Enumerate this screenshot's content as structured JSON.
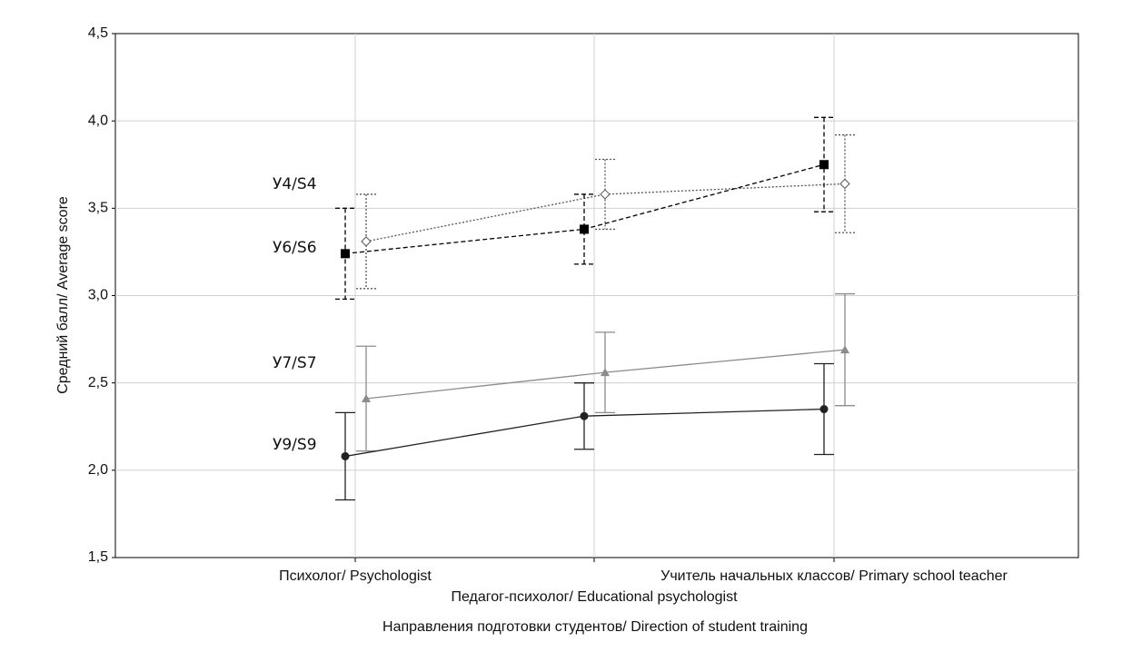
{
  "chart_data": {
    "type": "line",
    "x_label": "Направления подготовки студентов/ Direction of student training",
    "y_label": "Средний балл/ Average score",
    "categories": [
      "Психолог/ Psychologist",
      "Педагог-психолог/ Educational psychologist",
      "Учитель начальных классов/ Primary school teacher"
    ],
    "ylim": [
      1.5,
      4.5
    ],
    "yticks": [
      {
        "value": 1.5,
        "label": "1,5"
      },
      {
        "value": 2.0,
        "label": "2,0"
      },
      {
        "value": 2.5,
        "label": "2,5"
      },
      {
        "value": 3.0,
        "label": "3,0"
      },
      {
        "value": 3.5,
        "label": "3,5"
      },
      {
        "value": 4.0,
        "label": "4,0"
      },
      {
        "value": 4.5,
        "label": "4,5"
      }
    ],
    "grid": true,
    "series": [
      {
        "name": "У4/S4",
        "color": "#555555",
        "marker": "diamond",
        "dash": "dotted",
        "values": [
          3.31,
          3.58,
          3.64
        ],
        "errors": [
          0.27,
          0.2,
          0.28
        ]
      },
      {
        "name": "У6/S6",
        "color": "#000000",
        "marker": "square",
        "dash": "dashed",
        "values": [
          3.24,
          3.38,
          3.75
        ],
        "errors": [
          0.26,
          0.2,
          0.27
        ]
      },
      {
        "name": "У7/S7",
        "color": "#8c8c8c",
        "marker": "triangle",
        "dash": "solid",
        "values": [
          2.41,
          2.56,
          2.69
        ],
        "errors": [
          0.3,
          0.23,
          0.32
        ]
      },
      {
        "name": "У9/S9",
        "color": "#222222",
        "marker": "circle",
        "dash": "solid",
        "values": [
          2.08,
          2.31,
          2.35
        ],
        "errors": [
          0.25,
          0.19,
          0.26
        ]
      }
    ]
  }
}
